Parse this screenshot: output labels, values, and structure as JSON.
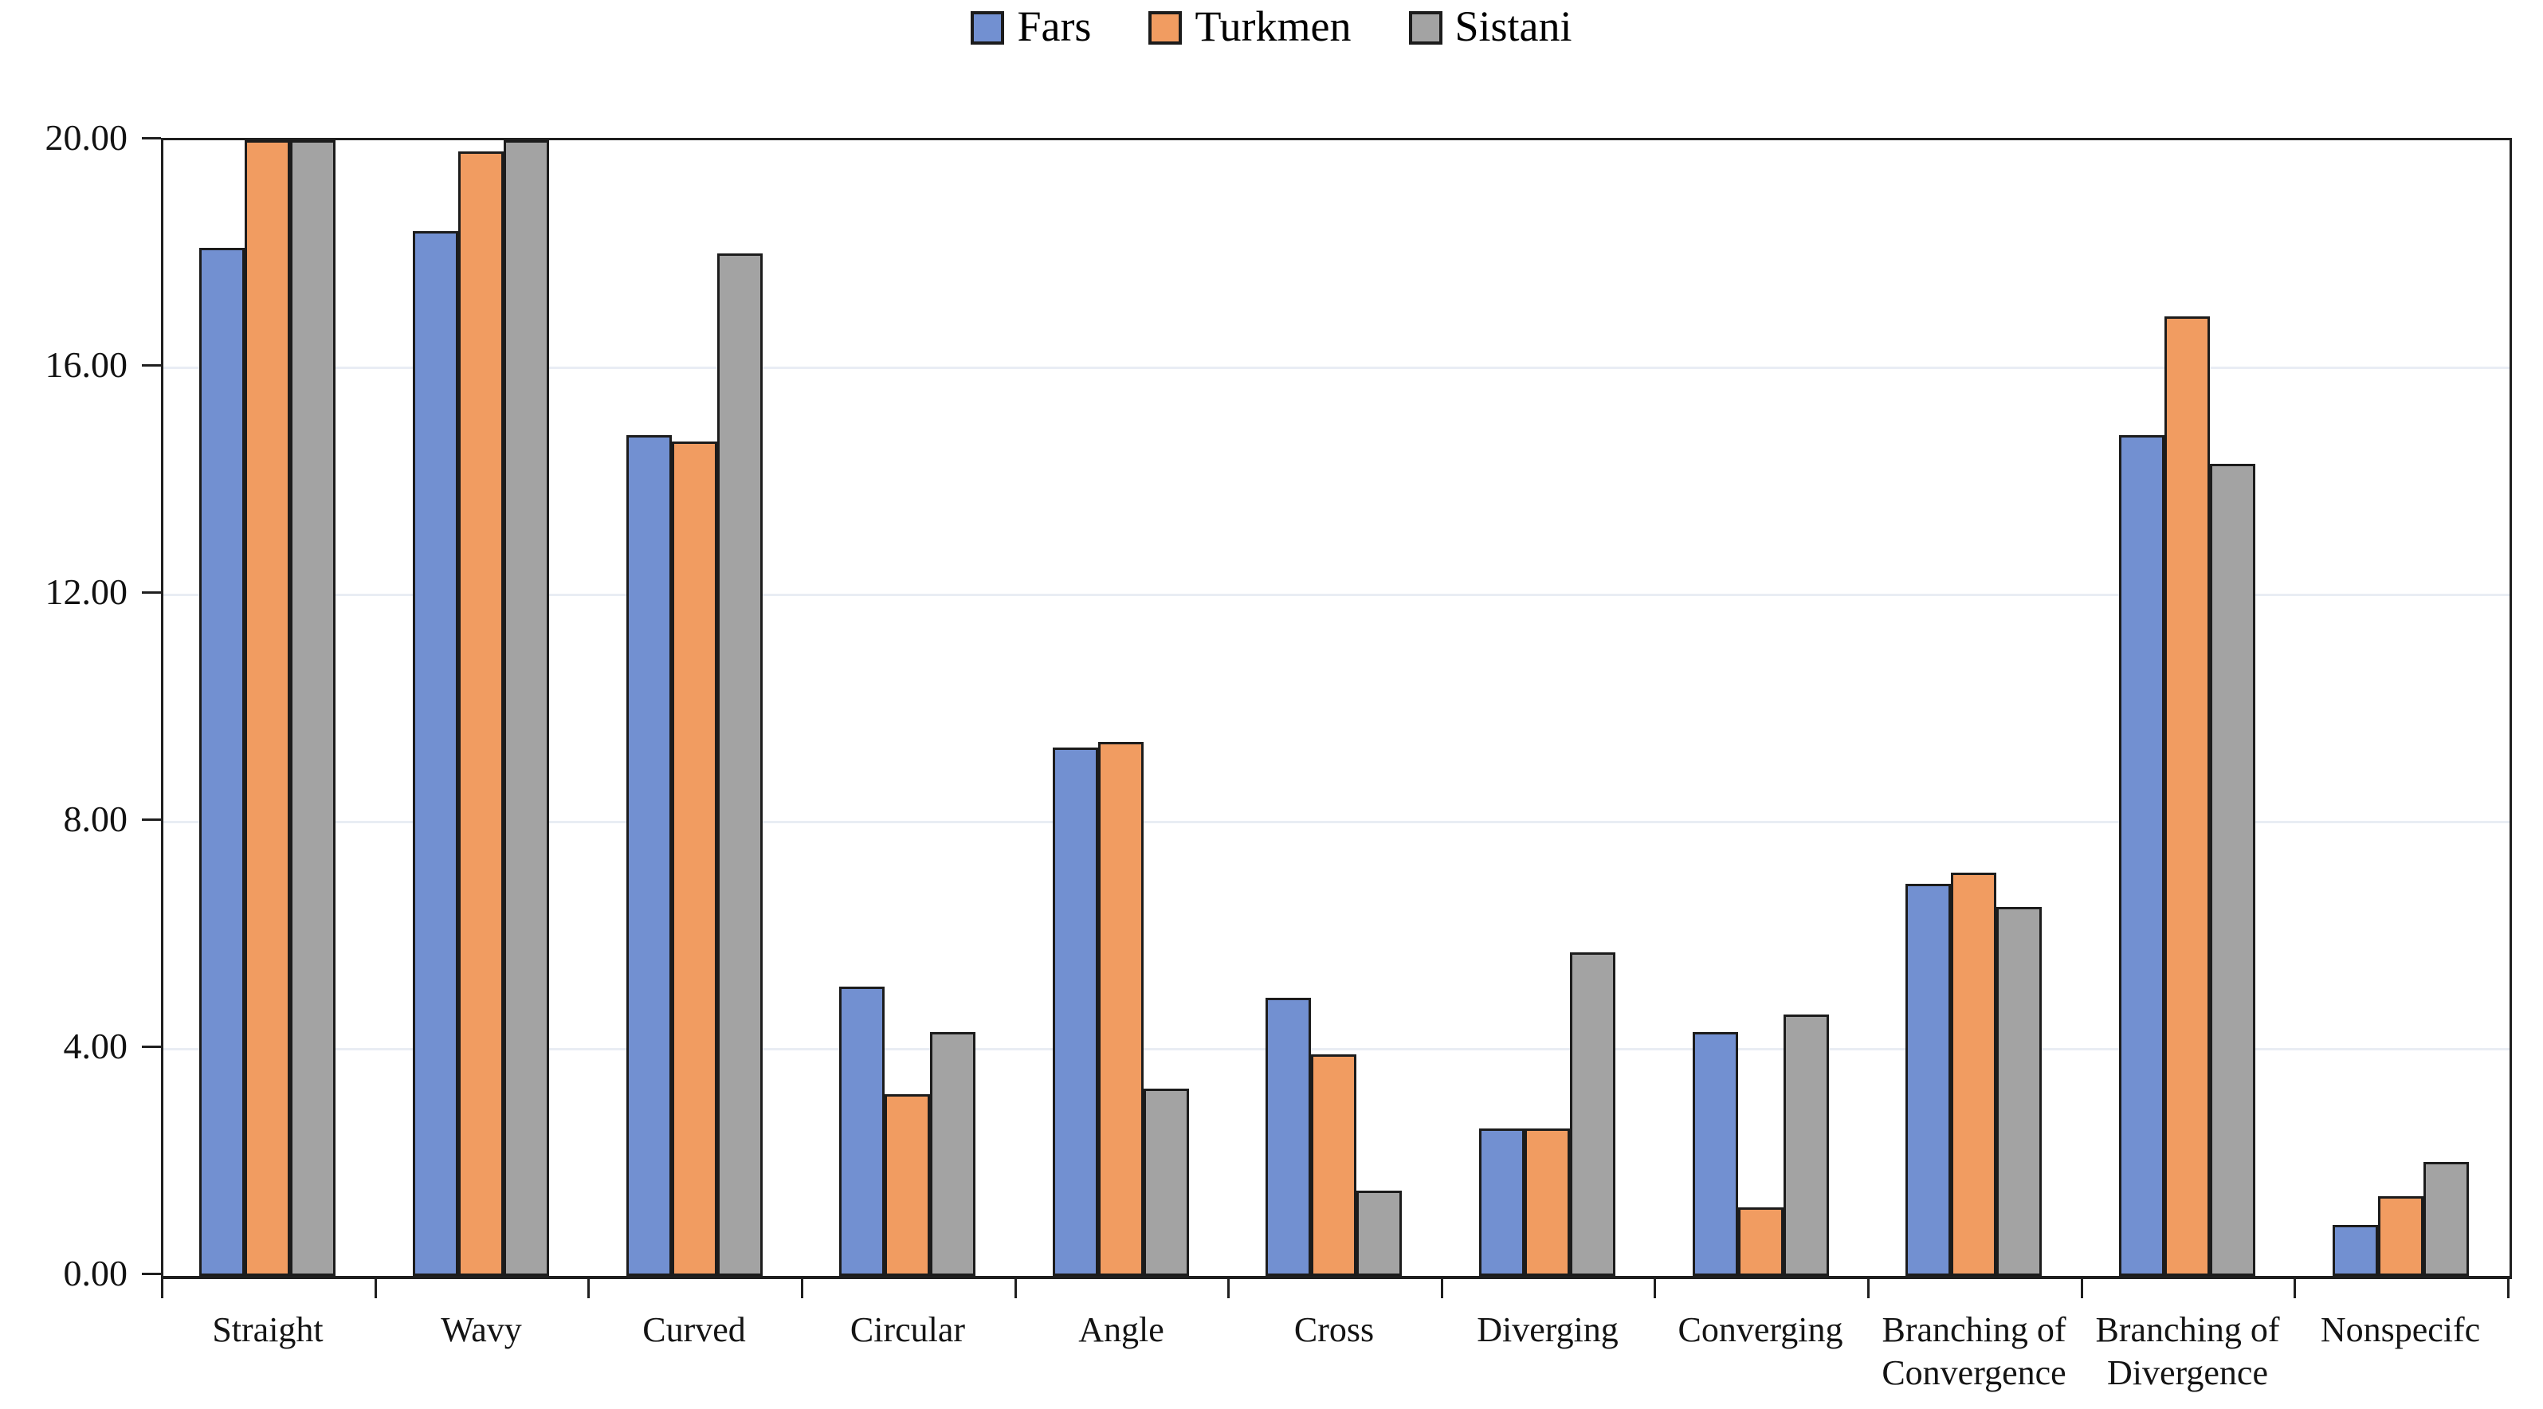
{
  "legend": {
    "items": [
      {
        "label": "Fars",
        "color": "#7290D1"
      },
      {
        "label": "Turkmen",
        "color": "#F19C61"
      },
      {
        "label": "Sistani",
        "color": "#A3A3A3"
      }
    ]
  },
  "chart_data": {
    "type": "bar",
    "title": "",
    "xlabel": "",
    "ylabel": "",
    "categories": [
      "Straight",
      "Wavy",
      "Curved",
      "Circular",
      "Angle",
      "Cross",
      "Diverging",
      "Converging",
      "Branching of Convergence",
      "Branching of Divergence",
      "Nonspecifc"
    ],
    "series": [
      {
        "name": "Fars",
        "color": "#7290D1",
        "values": [
          18.1,
          18.4,
          14.8,
          5.1,
          9.3,
          4.9,
          2.6,
          4.3,
          6.9,
          14.8,
          0.9
        ]
      },
      {
        "name": "Turkmen",
        "color": "#F19C61",
        "values": [
          20.0,
          19.8,
          14.7,
          3.2,
          9.4,
          3.9,
          2.6,
          1.2,
          7.1,
          16.9,
          1.4
        ]
      },
      {
        "name": "Sistani",
        "color": "#A3A3A3",
        "values": [
          20.0,
          20.0,
          18.0,
          4.3,
          3.3,
          1.5,
          5.7,
          4.6,
          6.5,
          14.3,
          2.0
        ]
      }
    ],
    "ylim": [
      0,
      20
    ],
    "ytick_interval": 4,
    "ytick_labels_top_to_bottom": [
      "20.00",
      "16.00",
      "12.00",
      "8.00",
      "4.00",
      "0.00"
    ],
    "grid": "horizontal",
    "legend_position": "top-center",
    "bar_border_color": "#1c1c1c",
    "axis_color": "#1f1f1f",
    "gridline_color": "#e9edf4"
  }
}
